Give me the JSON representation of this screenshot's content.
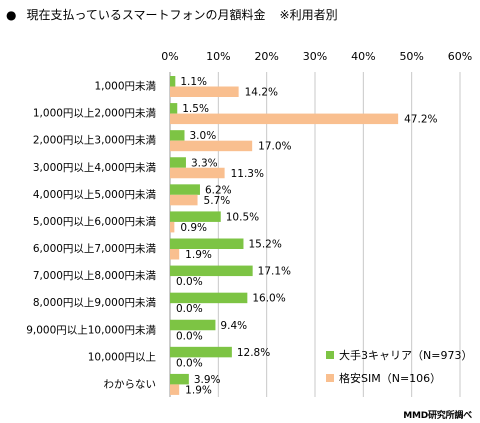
{
  "title": {
    "bullet": "●",
    "text": "現在支払っているスマートフォンの月額料金",
    "note": "※利用者別"
  },
  "source": "MMD研究所調べ",
  "colors": {
    "series1": "#7dc444",
    "series2": "#f9bf8f",
    "grid": "#c8c8c8",
    "axis": "#999999"
  },
  "chart_data": {
    "type": "bar",
    "orientation": "horizontal",
    "categories": [
      "1,000円未満",
      "1,000円以上2,000円未満",
      "2,000円以上3,000円未満",
      "3,000円以上4,000円未満",
      "4,000円以上5,000円未満",
      "5,000円以上6,000円未満",
      "6,000円以上7,000円未満",
      "7,000円以上8,000円未満",
      "8,000円以上9,000円未満",
      "9,000円以上10,000円未満",
      "10,000円以上",
      "わからない"
    ],
    "series": [
      {
        "name": "大手3キャリア（N=973）",
        "values": [
          1.1,
          1.5,
          3.0,
          3.3,
          6.2,
          10.5,
          15.2,
          17.1,
          16.0,
          9.4,
          12.8,
          3.9
        ]
      },
      {
        "name": "格安SIM（N=106）",
        "values": [
          14.2,
          47.2,
          17.0,
          11.3,
          5.7,
          0.9,
          1.9,
          0.0,
          0.0,
          0.0,
          0.0,
          1.9
        ]
      }
    ],
    "value_labels": [
      [
        "1.1%",
        "1.5%",
        "3.0%",
        "3.3%",
        "6.2%",
        "10.5%",
        "15.2%",
        "17.1%",
        "16.0%",
        "9.4%",
        "12.8%",
        "3.9%"
      ],
      [
        "14.2%",
        "47.2%",
        "17.0%",
        "11.3%",
        "5.7%",
        "0.9%",
        "1.9%",
        "0.0%",
        "0.0%",
        "0.0%",
        "0.0%",
        "1.9%"
      ]
    ],
    "xticks": [
      "0%",
      "10%",
      "20%",
      "30%",
      "40%",
      "50%",
      "60%"
    ],
    "xlim": [
      0,
      60
    ],
    "grid": true,
    "legend_position": "bottom-right"
  }
}
